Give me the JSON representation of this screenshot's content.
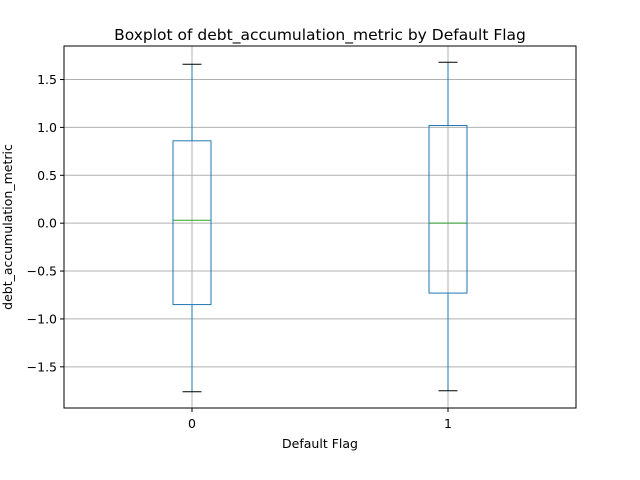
{
  "chart_data": {
    "type": "boxplot",
    "title": "Boxplot of debt_accumulation_metric by Default Flag",
    "xlabel": "Default Flag",
    "ylabel": "debt_accumulation_metric",
    "categories": [
      "0",
      "1"
    ],
    "boxes": [
      {
        "category": "0",
        "whisker_low": -1.76,
        "q1": -0.85,
        "median": 0.03,
        "q3": 0.86,
        "whisker_high": 1.66
      },
      {
        "category": "1",
        "whisker_low": -1.75,
        "q1": -0.73,
        "median": 0.0,
        "q3": 1.02,
        "whisker_high": 1.68
      }
    ],
    "ylim": [
      -1.93,
      1.85
    ],
    "yticks": [
      -1.5,
      -1.0,
      -0.5,
      0.0,
      0.5,
      1.0,
      1.5
    ],
    "ytick_labels": [
      "−1.5",
      "−1.0",
      "−0.5",
      "0.0",
      "0.5",
      "1.0",
      "1.5"
    ],
    "grid": true,
    "colors": {
      "box": "#1f77b4",
      "median": "#2ca02c",
      "cap": "#000000",
      "grid": "#b0b0b0"
    }
  }
}
